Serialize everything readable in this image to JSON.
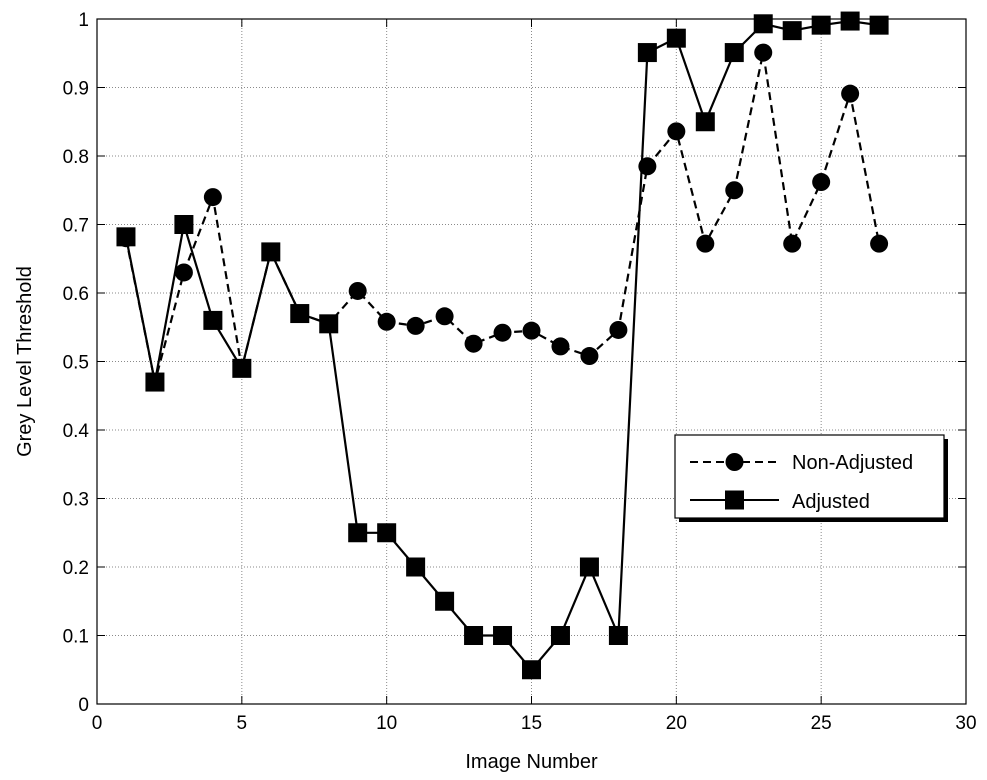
{
  "chart_data": {
    "type": "line",
    "title": "",
    "xlabel": "Image Number",
    "ylabel": "Grey Level Threshold",
    "xlim": [
      0,
      30
    ],
    "ylim": [
      0,
      1
    ],
    "xticks": [
      0,
      5,
      10,
      15,
      20,
      25,
      30
    ],
    "yticks": [
      0,
      0.1,
      0.2,
      0.3,
      0.4,
      0.5,
      0.6,
      0.7,
      0.8,
      0.9,
      1
    ],
    "xtick_labels": [
      "0",
      "5",
      "10",
      "15",
      "20",
      "25",
      "30"
    ],
    "ytick_labels": [
      "0",
      "0.1",
      "0.2",
      "0.3",
      "0.4",
      "0.5",
      "0.6",
      "0.7",
      "0.8",
      "0.9",
      "1"
    ],
    "grid": true,
    "legend_position": "lower-right",
    "series": [
      {
        "name": "Non-Adjusted",
        "line_style": "dashed",
        "marker": "circle",
        "color": "#000000",
        "x": [
          1,
          2,
          3,
          4,
          5,
          6,
          7,
          8,
          9,
          10,
          11,
          12,
          13,
          14,
          15,
          16,
          17,
          18,
          19,
          20,
          21,
          22,
          23,
          24,
          25,
          26,
          27
        ],
        "y": [
          0.68,
          0.47,
          0.63,
          0.74,
          0.49,
          0.66,
          0.57,
          0.555,
          0.603,
          0.558,
          0.552,
          0.566,
          0.526,
          0.542,
          0.545,
          0.522,
          0.508,
          0.546,
          0.785,
          0.836,
          0.672,
          0.75,
          0.951,
          0.672,
          0.762,
          0.891,
          0.672
        ]
      },
      {
        "name": "Adjusted",
        "line_style": "solid",
        "marker": "square",
        "color": "#000000",
        "x": [
          1,
          2,
          3,
          4,
          5,
          6,
          7,
          8,
          9,
          10,
          11,
          12,
          13,
          14,
          15,
          16,
          17,
          18,
          19,
          20,
          21,
          22,
          23,
          24,
          25,
          26,
          27
        ],
        "y": [
          0.682,
          0.47,
          0.7,
          0.56,
          0.49,
          0.66,
          0.57,
          0.555,
          0.25,
          0.25,
          0.2,
          0.15,
          0.1,
          0.1,
          0.05,
          0.1,
          0.2,
          0.1,
          0.951,
          0.972,
          0.85,
          0.951,
          0.993,
          0.983,
          0.991,
          0.997,
          0.991
        ]
      }
    ]
  }
}
